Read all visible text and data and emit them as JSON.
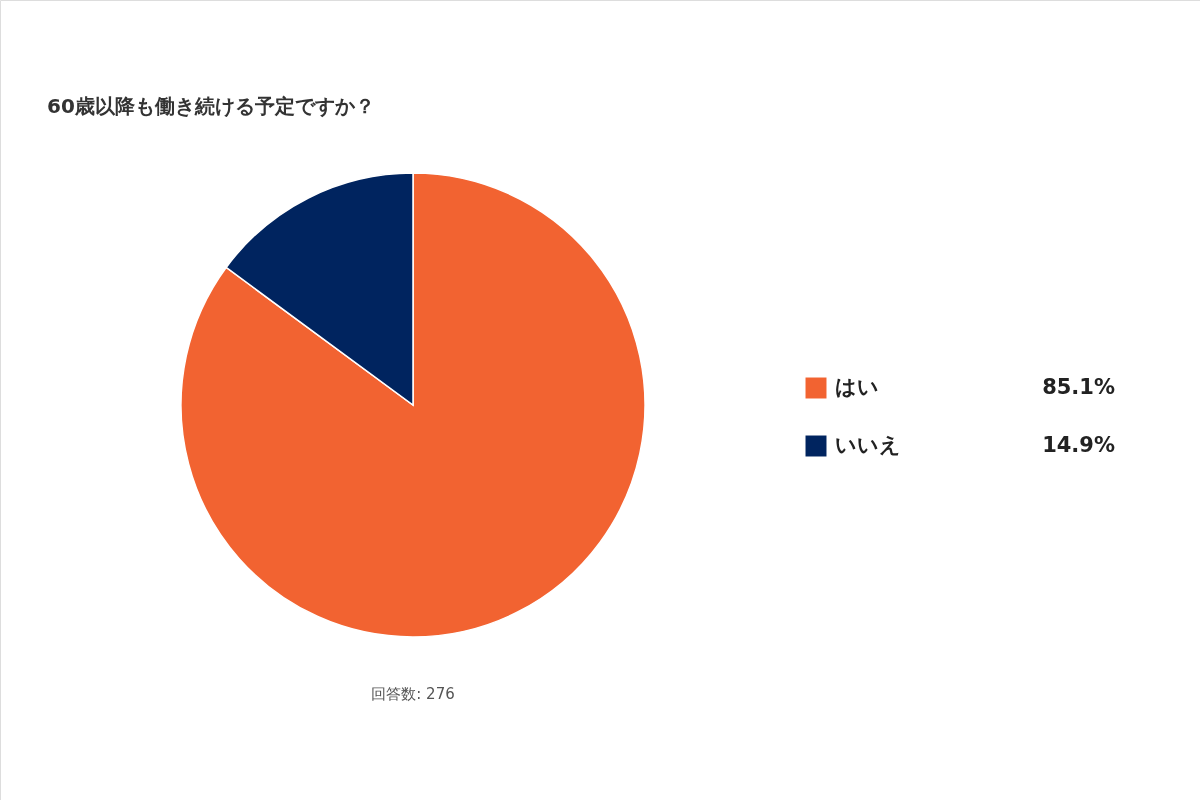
{
  "chart_data": {
    "type": "pie",
    "title": "60歳以降も働き続ける予定ですか？",
    "categories": [
      "はい",
      "いいえ"
    ],
    "values": [
      85.1,
      14.9
    ],
    "colors": [
      "#f26331",
      "#00245f"
    ],
    "value_labels": [
      "85.1%",
      "14.9%"
    ],
    "legend": "right",
    "annotations": [
      "回答数: 276"
    ]
  }
}
